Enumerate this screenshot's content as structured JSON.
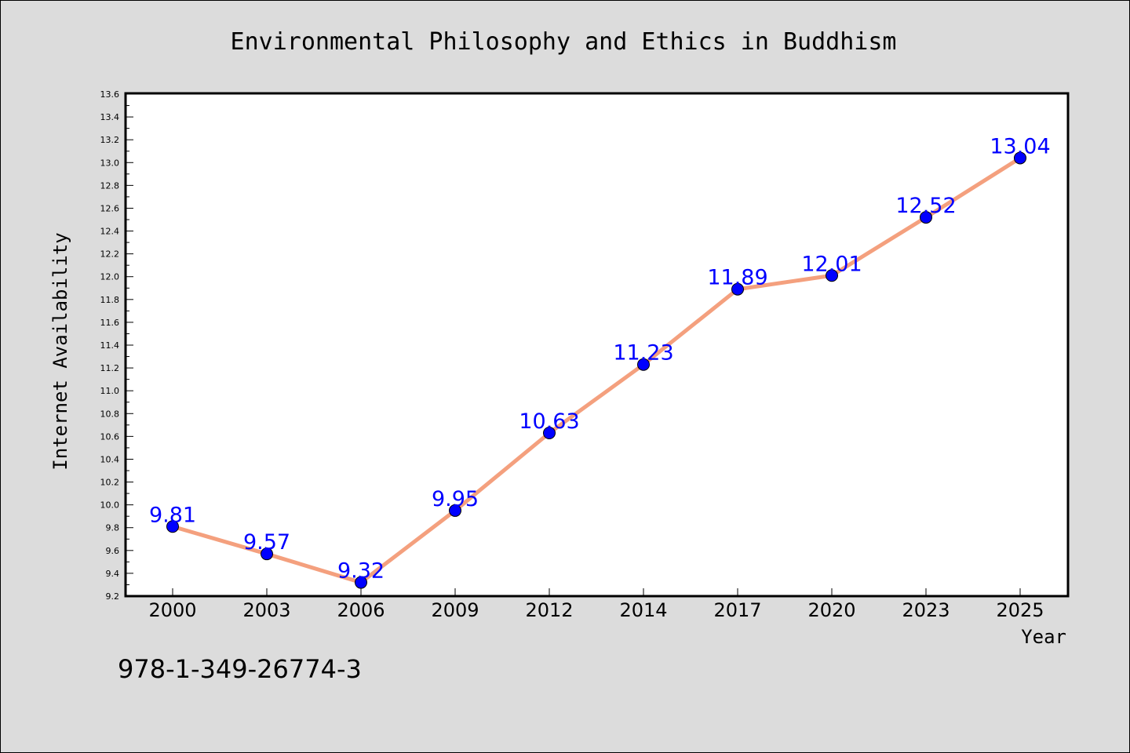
{
  "chart_data": {
    "type": "line",
    "title": "Environmental Philosophy and Ethics in Buddhism",
    "xlabel": "Year",
    "ylabel": "Internet Availability",
    "categories": [
      "2000",
      "2003",
      "2006",
      "2009",
      "2012",
      "2014",
      "2017",
      "2020",
      "2023",
      "2025"
    ],
    "series": [
      {
        "values": [
          9.81,
          9.57,
          9.32,
          9.95,
          10.63,
          11.23,
          11.89,
          12.01,
          12.52,
          13.04
        ],
        "data_labels": [
          "9.81",
          "9.57",
          "9.32",
          "9.95",
          "10.63",
          "11.23",
          "11.89",
          "12.01",
          "12.52",
          "13.04"
        ]
      }
    ],
    "ylim": [
      9.2,
      13.6
    ],
    "yticks": [
      "9.2",
      "9.4",
      "9.6",
      "9.8",
      "10.0",
      "10.2",
      "10.4",
      "10.6",
      "10.8",
      "11.0",
      "11.2",
      "11.4",
      "11.6",
      "11.8",
      "12.0",
      "12.2",
      "12.4",
      "12.6",
      "12.8",
      "13.0",
      "13.2",
      "13.4",
      "13.6"
    ],
    "grid": false,
    "line_color": "#f4a07e",
    "marker_color": "#0000ff",
    "label_color": "#0000ff"
  },
  "footer": {
    "isbn": "978-1-349-26774-3"
  }
}
